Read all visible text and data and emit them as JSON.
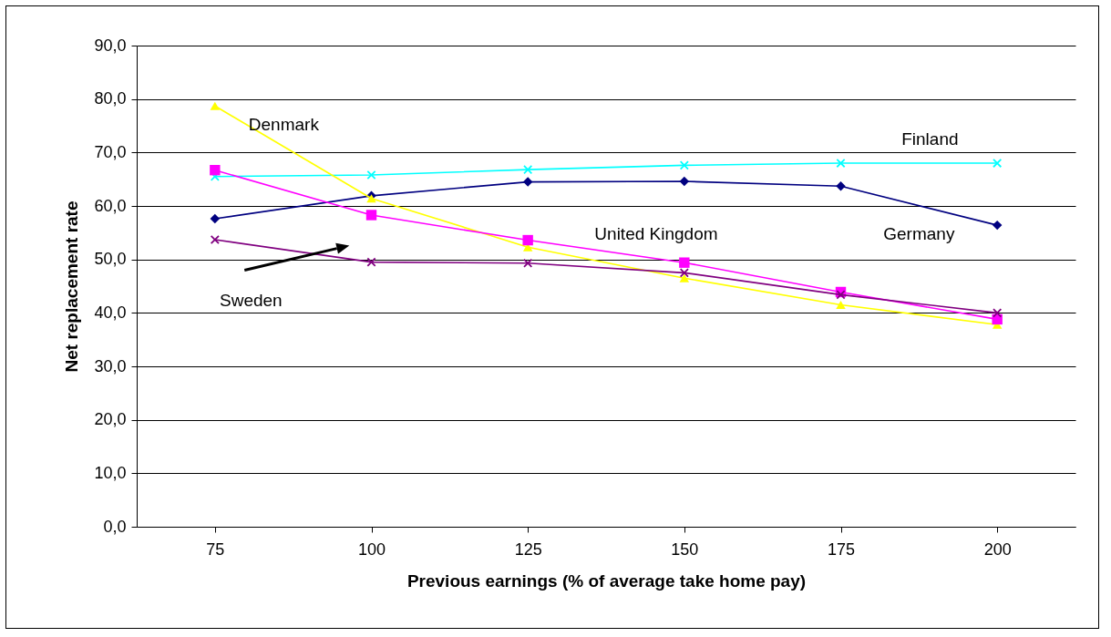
{
  "chart_data": {
    "type": "line",
    "xlabel": "Previous earnings (% of average take home pay)",
    "ylabel": "Net replacement rate",
    "categories": [
      "75",
      "100",
      "125",
      "150",
      "175",
      "200"
    ],
    "series": [
      {
        "name": "Germany",
        "color": "#000080",
        "marker": "diamond",
        "values": [
          57.6,
          61.9,
          64.5,
          64.6,
          63.7,
          56.4
        ]
      },
      {
        "name": "Finland",
        "color": "#00ffff",
        "marker": "cross",
        "values": [
          65.5,
          65.8,
          66.8,
          67.6,
          68.0,
          68.0
        ]
      },
      {
        "name": "Denmark",
        "color": "#ffff00",
        "marker": "triangle",
        "values": [
          78.7,
          61.4,
          52.3,
          46.5,
          41.5,
          37.8
        ]
      },
      {
        "name": "United Kingdom",
        "color": "#ff00ff",
        "marker": "square",
        "values": [
          66.7,
          58.3,
          53.6,
          49.4,
          43.9,
          38.8
        ]
      },
      {
        "name": "Sweden",
        "color": "#800080",
        "marker": "cross",
        "values": [
          53.7,
          49.5,
          49.3,
          47.5,
          43.4,
          40.0
        ]
      }
    ],
    "ylim": [
      0,
      90
    ],
    "yticks": [
      {
        "value": 0,
        "label": "0,0"
      },
      {
        "value": 10,
        "label": "10,0"
      },
      {
        "value": 20,
        "label": "20,0"
      },
      {
        "value": 30,
        "label": "30,0"
      },
      {
        "value": 40,
        "label": "40,0"
      },
      {
        "value": 50,
        "label": "50,0"
      },
      {
        "value": 60,
        "label": "60,0"
      },
      {
        "value": 70,
        "label": "70,0"
      },
      {
        "value": 80,
        "label": "80,0"
      },
      {
        "value": 90,
        "label": "90,0"
      }
    ],
    "grid": "y",
    "line_style": "solid"
  }
}
